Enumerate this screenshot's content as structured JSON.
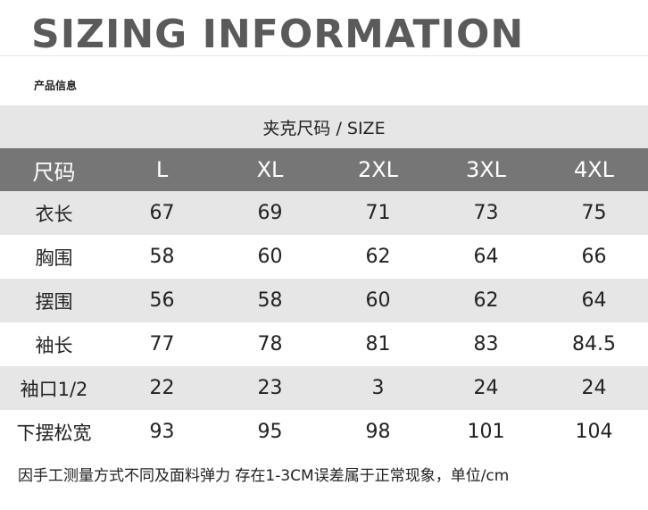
{
  "heading": "SIZING INFORMATION",
  "subtitle": "产品信息",
  "table_caption": "夹克尺码 / SIZE",
  "table": {
    "header": [
      "尺码",
      "L",
      "XL",
      "2XL",
      "3XL",
      "4XL"
    ],
    "rows": [
      {
        "label": "衣长",
        "values": [
          "67",
          "69",
          "71",
          "73",
          "75"
        ]
      },
      {
        "label": "胸围",
        "values": [
          "58",
          "60",
          "62",
          "64",
          "66"
        ]
      },
      {
        "label": "摆围",
        "values": [
          "56",
          "58",
          "60",
          "62",
          "64"
        ]
      },
      {
        "label": "袖长",
        "values": [
          "77",
          "78",
          "81",
          "83",
          "84.5"
        ]
      },
      {
        "label": "袖口1/2",
        "values": [
          "22",
          "23",
          "3",
          "24",
          "24"
        ]
      },
      {
        "label": "下摆松宽",
        "values": [
          "93",
          "95",
          "98",
          "101",
          "104"
        ]
      }
    ]
  },
  "footnote": "因手工测量方式不同及面料弹力 存在1-3CM误差属于正常现象，单位/cm",
  "colors": {
    "heading": "#5a5a5a",
    "header_row": "#767676",
    "shaded_row": "#e6e6e6",
    "text": "#222222"
  }
}
